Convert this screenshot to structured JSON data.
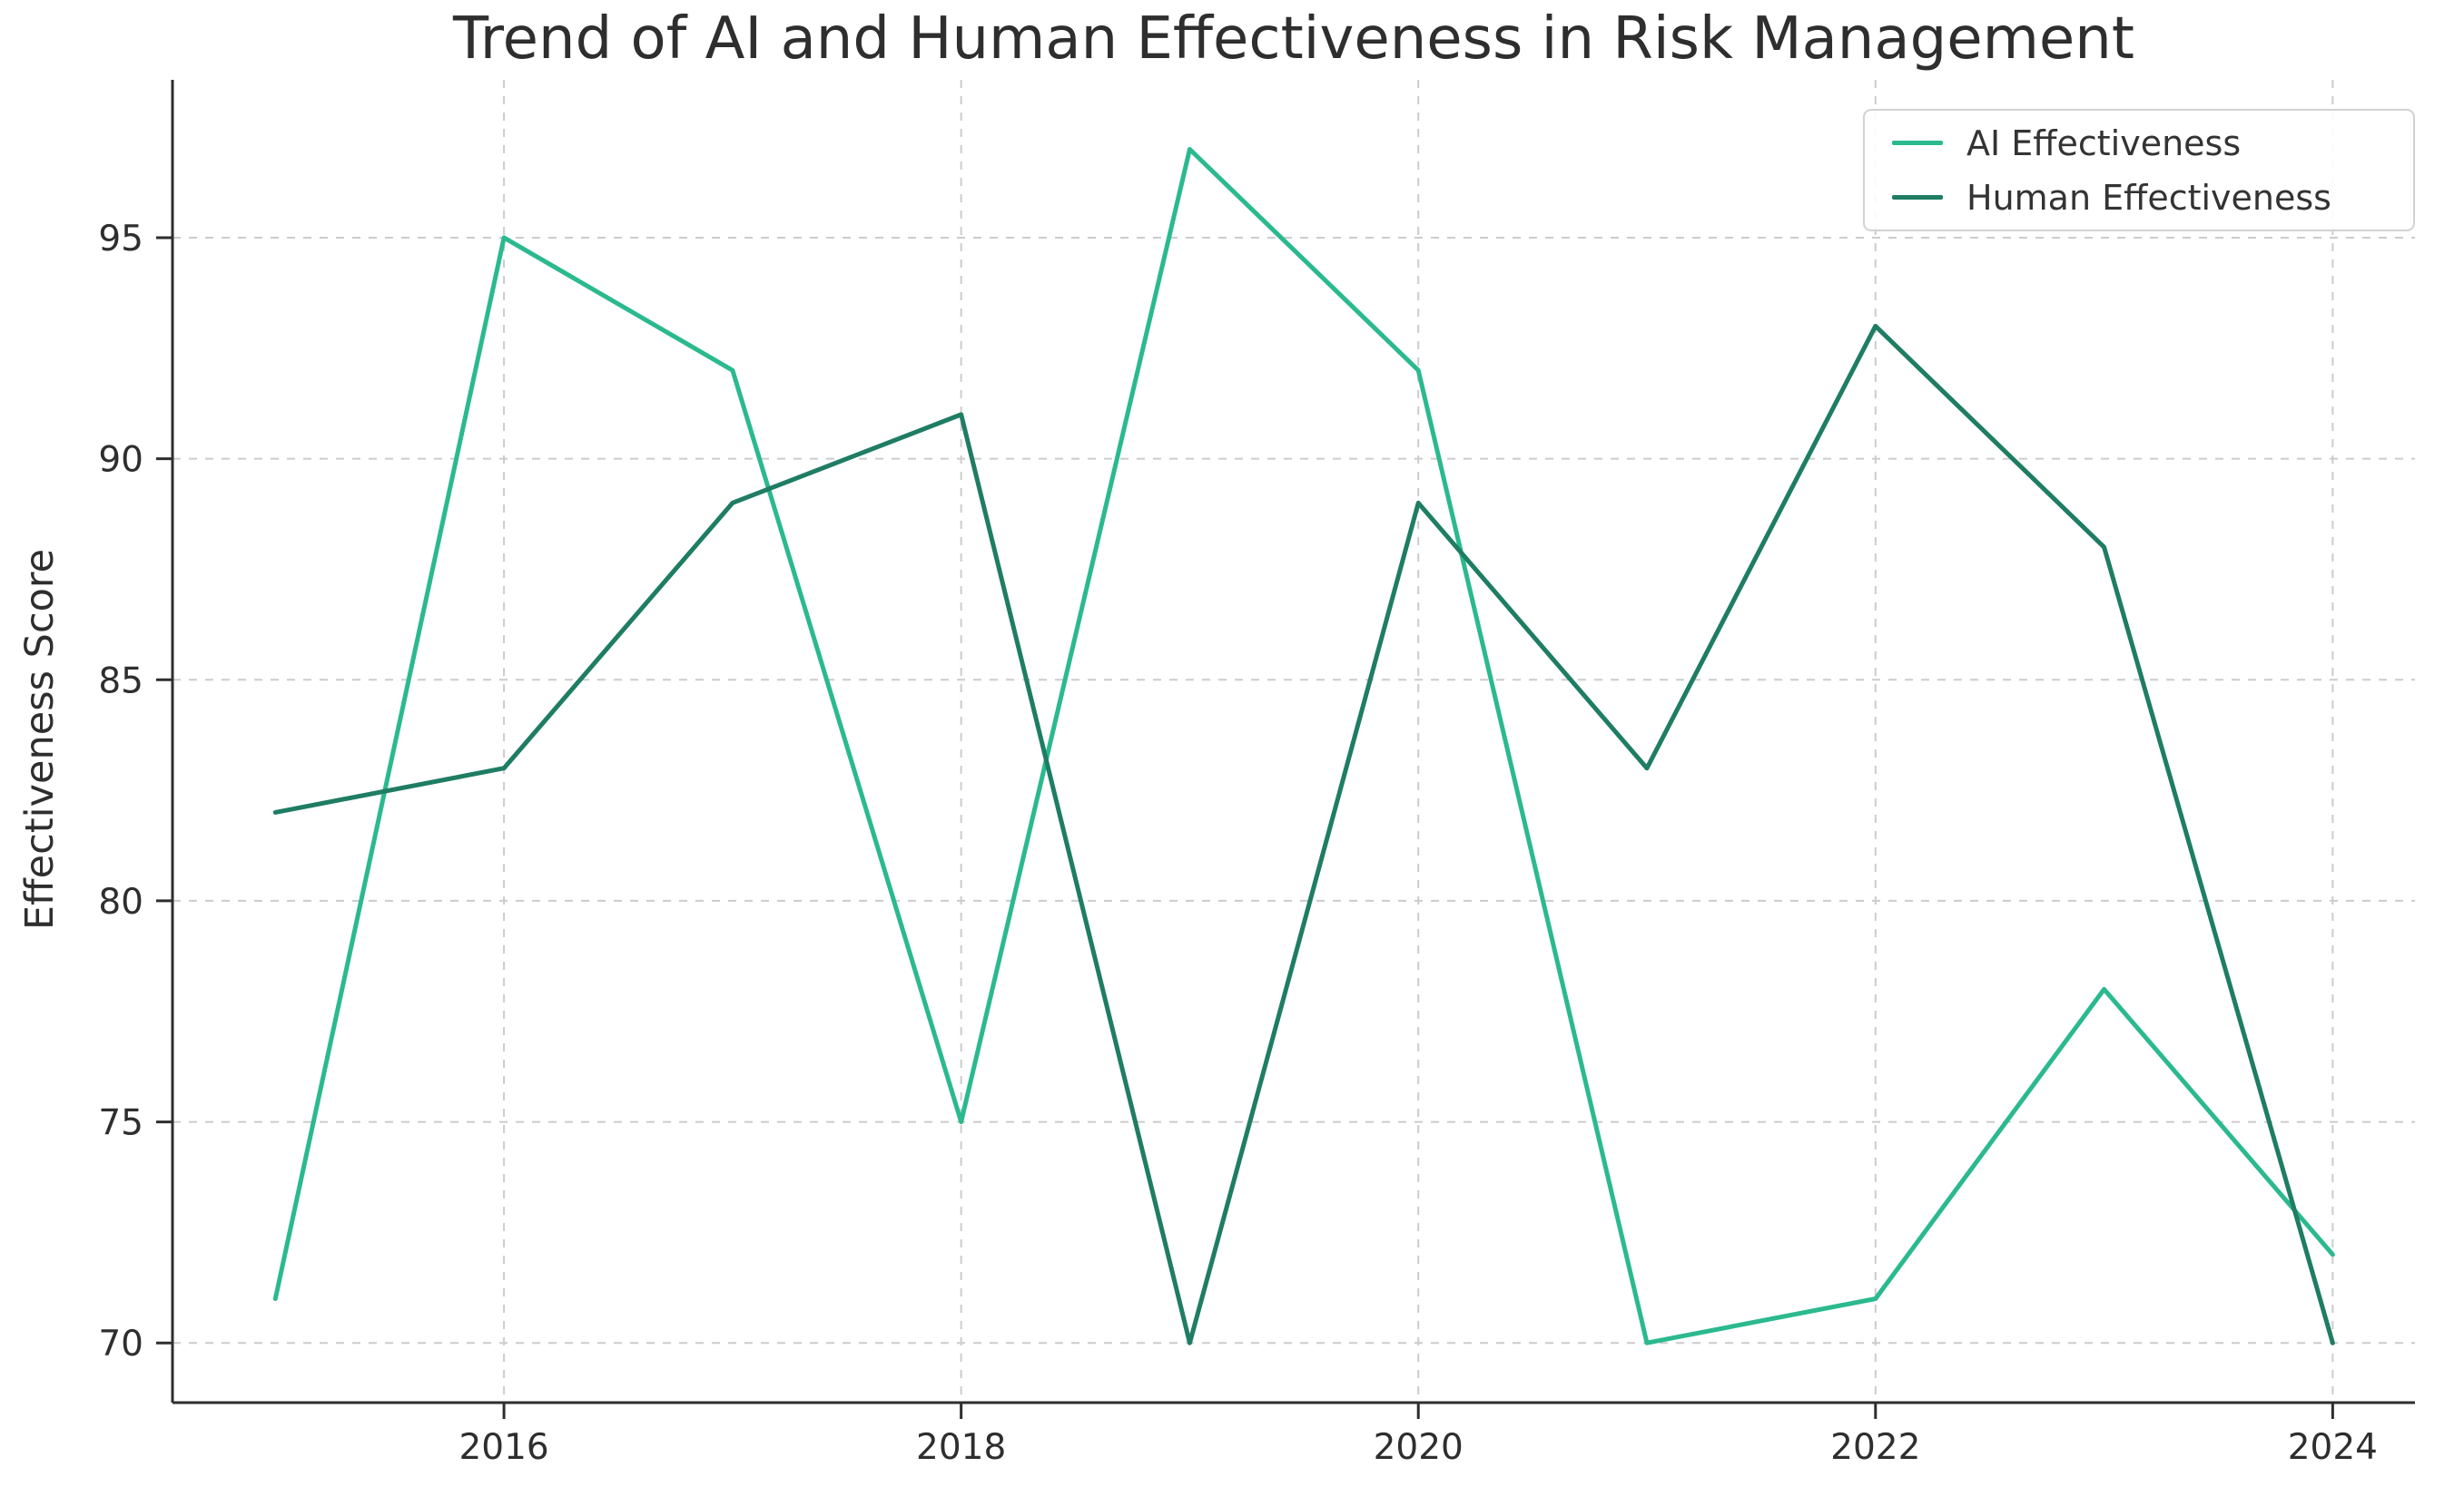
{
  "chart": {
    "title": "Trend of AI and Human Effectiveness in Risk Management",
    "y_axis_label": "Effectiveness Score"
  },
  "colors": {
    "grid": "#cccccc",
    "spine": "#2e2e2e",
    "tick_text": "#2e2e2e",
    "ai_line": "#2bb98e",
    "human_line": "#1e7d63"
  },
  "chart_data": {
    "type": "line",
    "title": "Trend of AI and Human Effectiveness in Risk Management",
    "xlabel": "",
    "ylabel": "Effectiveness Score",
    "x": [
      2015,
      2016,
      2017,
      2018,
      2019,
      2020,
      2021,
      2022,
      2023,
      2024
    ],
    "series": [
      {
        "name": "AI Effectiveness",
        "color": "#2bb98e",
        "values": [
          71,
          95,
          92,
          75,
          97,
          92,
          70,
          71,
          78,
          72
        ]
      },
      {
        "name": "Human Effectiveness",
        "color": "#1e7d63",
        "values": [
          82,
          83,
          89,
          91,
          70,
          89,
          83,
          93,
          88,
          70
        ]
      }
    ],
    "x_ticks": [
      2016,
      2018,
      2020,
      2022,
      2024
    ],
    "y_ticks": [
      70,
      75,
      80,
      85,
      90,
      95
    ],
    "xlim": [
      2014.55,
      2024.36
    ],
    "ylim": [
      68.65,
      98.57
    ],
    "grid": true,
    "grid_style": "dashed",
    "legend_position": "upper right"
  }
}
